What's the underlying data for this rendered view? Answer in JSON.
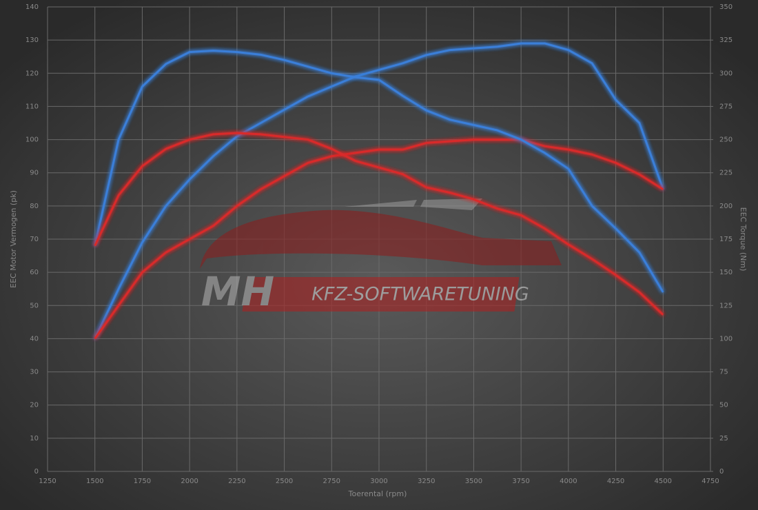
{
  "chart_data": {
    "type": "line",
    "x_label": "Toerental (rpm)",
    "y_label": "EEC Motor Vermogen (pk)",
    "y2_label": "EEC Torque (Nm)",
    "watermark": [
      "MH",
      "KFZ-SOFTWARETUNING"
    ],
    "x": [
      1500,
      1625,
      1750,
      1875,
      2000,
      2125,
      2250,
      2375,
      2500,
      2625,
      2750,
      2875,
      3000,
      3125,
      3250,
      3375,
      3500,
      3625,
      3750,
      3875,
      4000,
      4125,
      4250,
      4375,
      4500
    ],
    "xlim": [
      1250,
      4750
    ],
    "xticks": [
      1250,
      1500,
      1750,
      2000,
      2250,
      2500,
      2750,
      3000,
      3250,
      3500,
      3750,
      4000,
      4250,
      4500,
      4750
    ],
    "ylim": [
      0,
      140
    ],
    "yticks": [
      0,
      10,
      20,
      30,
      40,
      50,
      60,
      70,
      80,
      90,
      100,
      110,
      120,
      130,
      140
    ],
    "y2lim": [
      0,
      350
    ],
    "y2ticks": [
      0,
      25,
      50,
      75,
      100,
      125,
      150,
      175,
      200,
      225,
      250,
      275,
      300,
      325,
      350
    ],
    "grid": true,
    "series": [
      {
        "color": "#3a7fd9",
        "values": [
          40,
          55,
          69,
          80,
          88,
          95,
          101,
          105,
          109,
          113,
          116,
          119,
          121,
          123,
          125.5,
          127,
          127.5,
          128,
          129,
          129,
          127,
          123,
          112,
          105,
          85
        ]
      },
      {
        "color": "#d92a2a",
        "values": [
          40,
          50,
          60,
          66,
          70,
          74,
          80,
          85,
          89,
          93,
          95,
          96,
          97,
          97,
          99,
          99.5,
          100,
          100,
          100,
          98,
          97,
          95.5,
          93,
          89.5,
          85
        ]
      },
      {
        "color": "#3a7fd9",
        "axis": "y2",
        "values": [
          170,
          250,
          290,
          307,
          316,
          317,
          316,
          314,
          310,
          305,
          300,
          297,
          295,
          283,
          272,
          265,
          261,
          257,
          250,
          240,
          228,
          200,
          183,
          165,
          135
        ]
      },
      {
        "color": "#d92a2a",
        "axis": "y2",
        "values": [
          170,
          208,
          230,
          243,
          250,
          254,
          255,
          254,
          252,
          250,
          243,
          234,
          229,
          224,
          214,
          210,
          205,
          198,
          193,
          183,
          171,
          160,
          148,
          135,
          118
        ]
      }
    ]
  }
}
